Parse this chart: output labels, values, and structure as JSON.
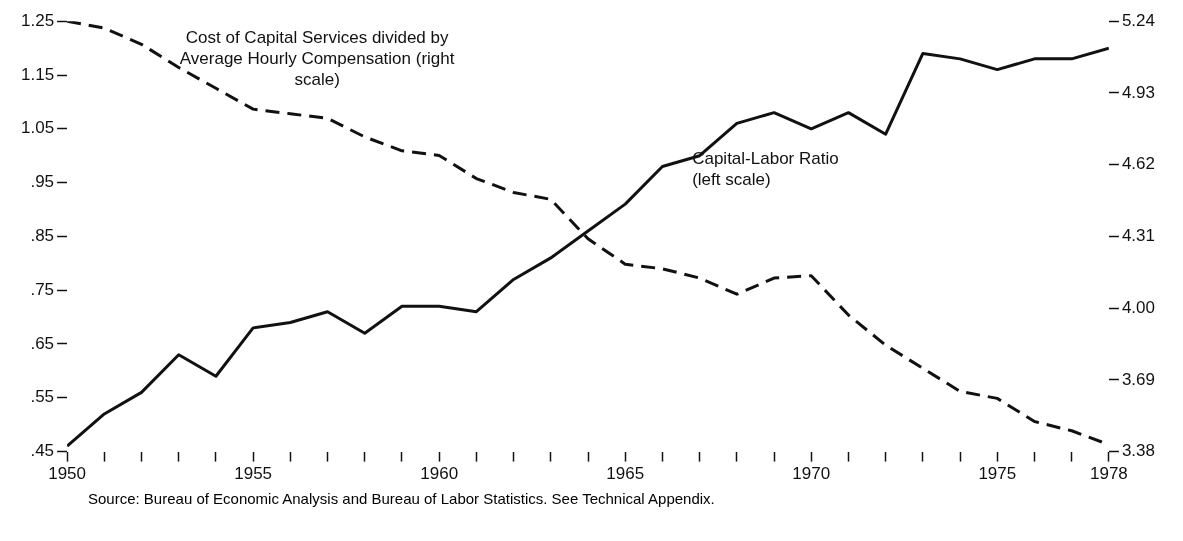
{
  "chart_data": {
    "type": "line",
    "x": [
      1950,
      1951,
      1952,
      1953,
      1954,
      1955,
      1956,
      1957,
      1958,
      1959,
      1960,
      1961,
      1962,
      1963,
      1964,
      1965,
      1966,
      1967,
      1968,
      1969,
      1970,
      1971,
      1972,
      1973,
      1974,
      1975,
      1976,
      1977,
      1978
    ],
    "series": [
      {
        "name": "Capital-Labor Ratio (left scale)",
        "color": "#111111",
        "line_style": "solid",
        "values": [
          0.46,
          0.52,
          0.56,
          0.63,
          0.59,
          0.68,
          0.69,
          0.71,
          0.67,
          0.72,
          0.72,
          0.71,
          0.77,
          0.81,
          0.86,
          0.91,
          0.98,
          1.0,
          1.06,
          1.08,
          1.05,
          1.08,
          1.04,
          1.19,
          1.18,
          1.16,
          1.18,
          1.18,
          1.2
        ]
      },
      {
        "name": "Cost of Capital Services divided by Average Hourly Compensation (right scale)",
        "color": "#111111",
        "line_style": "dashed",
        "axis": "y2",
        "values": [
          5.24,
          5.21,
          5.14,
          5.04,
          4.95,
          4.86,
          4.84,
          4.82,
          4.74,
          4.68,
          4.66,
          4.56,
          4.5,
          4.47,
          4.3,
          4.19,
          4.17,
          4.13,
          4.06,
          4.13,
          4.14,
          3.97,
          3.84,
          3.74,
          3.64,
          3.61,
          3.51,
          3.47,
          3.41
        ]
      }
    ],
    "xlim": [
      1950,
      1978
    ],
    "xticks": [
      1950,
      {
        "value": 1951,
        "label": null
      },
      {
        "value": 1952,
        "label": null
      },
      {
        "value": 1953,
        "label": null
      },
      {
        "value": 1954,
        "label": null
      },
      1955,
      {
        "value": 1956,
        "label": null
      },
      {
        "value": 1957,
        "label": null
      },
      {
        "value": 1958,
        "label": null
      },
      {
        "value": 1959,
        "label": null
      },
      1960,
      {
        "value": 1961,
        "label": null
      },
      {
        "value": 1962,
        "label": null
      },
      {
        "value": 1963,
        "label": null
      },
      {
        "value": 1964,
        "label": null
      },
      1965,
      {
        "value": 1966,
        "label": null
      },
      {
        "value": 1967,
        "label": null
      },
      {
        "value": 1968,
        "label": null
      },
      {
        "value": 1969,
        "label": null
      },
      1970,
      {
        "value": 1971,
        "label": null
      },
      {
        "value": 1972,
        "label": null
      },
      {
        "value": 1973,
        "label": null
      },
      {
        "value": 1974,
        "label": null
      },
      1975,
      {
        "value": 1976,
        "label": null
      },
      {
        "value": 1977,
        "label": null
      },
      1978
    ],
    "ylim": [
      0.45,
      1.25
    ],
    "yticks": [
      {
        "value": 0.45,
        "label": ".45"
      },
      {
        "value": 0.55,
        "label": ".55"
      },
      {
        "value": 0.65,
        "label": ".65"
      },
      {
        "value": 0.75,
        "label": ".75"
      },
      {
        "value": 0.85,
        "label": ".85"
      },
      {
        "value": 0.95,
        "label": ".95"
      },
      {
        "value": 1.05,
        "label": "1.05"
      },
      {
        "value": 1.15,
        "label": "1.15"
      },
      {
        "value": 1.25,
        "label": "1.25"
      }
    ],
    "y2lim": [
      3.38,
      5.24
    ],
    "y2ticks": [
      {
        "value": 3.38,
        "label": "3.38"
      },
      {
        "value": 3.69,
        "label": "3.69"
      },
      {
        "value": 4.0,
        "label": "4.00"
      },
      {
        "value": 4.31,
        "label": "4.31"
      },
      {
        "value": 4.62,
        "label": "4.62"
      },
      {
        "value": 4.93,
        "label": "4.93"
      },
      {
        "value": 5.24,
        "label": "5.24"
      }
    ],
    "grid": false,
    "legend": false,
    "marker": "none",
    "annotations": [
      "Source: Bureau of Economic Analysis and Bureau of Labor Statistics. See Technical Appendix."
    ]
  }
}
